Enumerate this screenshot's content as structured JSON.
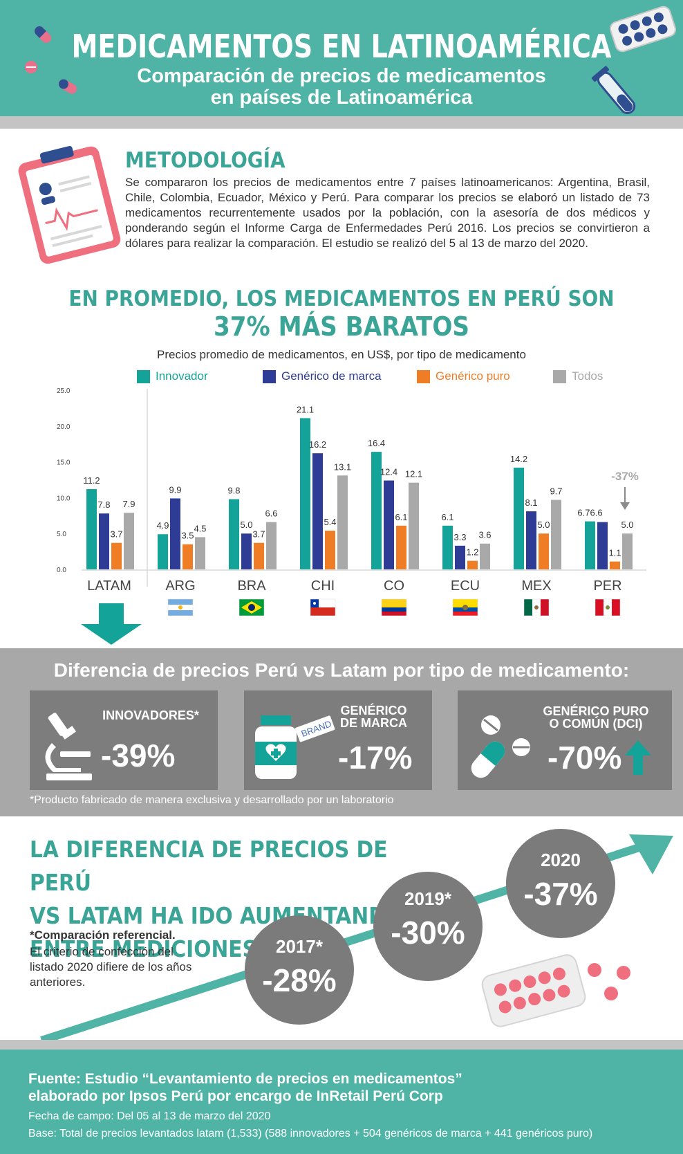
{
  "header": {
    "title": "MEDICAMENTOS EN LATINOAMÉRICA",
    "subtitle_line1": "Comparación de precios de medicamentos",
    "subtitle_line2": "en países de Latinoamérica"
  },
  "methodology": {
    "title": "METODOLOGÍA",
    "body": "Se compararon los precios de medicamentos entre 7 países latinoamericanos: Argentina, Brasil, Chile, Colombia, Ecuador, México y Perú. Para comparar los precios se elaboró un listado de 73 medicamentos recurrentemente usados por la población, con la asesoría de dos médicos y ponderando según el Informe Carga de Enfermedades Perú 2016. Los precios se convirtieron a dólares para realizar la comparación. El estudio se realizó del 5 al 13 de marzo del 2020."
  },
  "headline": {
    "line1": "EN PROMEDIO, LOS MEDICAMENTOS EN PERÚ SON",
    "line2": "37% MÁS BARATOS"
  },
  "chart_data": {
    "type": "bar",
    "title": "Precios promedio de medicamentos, en US$, por tipo de medicamento",
    "categories": [
      "LATAM",
      "ARG",
      "BRA",
      "CHI",
      "CO",
      "ECU",
      "MEX",
      "PER"
    ],
    "series": [
      {
        "name": "Innovador",
        "color": "#13a398",
        "values": [
          11.2,
          4.9,
          9.8,
          21.1,
          16.4,
          6.1,
          14.2,
          6.7
        ]
      },
      {
        "name": "Genérico de marca",
        "color": "#2e3c95",
        "values": [
          7.8,
          9.9,
          5.0,
          16.2,
          12.4,
          3.3,
          8.1,
          6.6
        ]
      },
      {
        "name": "Genérico puro",
        "color": "#ef7d26",
        "values": [
          3.7,
          3.5,
          3.7,
          5.4,
          6.1,
          1.2,
          5.0,
          1.1
        ]
      },
      {
        "name": "Todos",
        "color": "#a9a9a9",
        "values": [
          7.9,
          4.5,
          6.6,
          13.1,
          12.1,
          3.6,
          9.7,
          5.0
        ]
      }
    ],
    "value_labels": [
      [
        "11.2",
        "4.9",
        "9.8",
        "21.1",
        "16.4",
        "6.1",
        "14.2",
        "6.76.6"
      ],
      [
        "7.8",
        "9.9",
        "5.0",
        "16.2",
        "12.4",
        "3.3",
        "8.1",
        ""
      ],
      [
        "3.7",
        "3.5",
        "3.7",
        "5.4",
        "6.1",
        "1.2",
        "5.0",
        "1.1"
      ],
      [
        "7.9",
        "4.5",
        "6.6",
        "13.1",
        "12.1",
        "3.6",
        "9.7",
        "5.0"
      ]
    ],
    "yticks": [
      "0.0",
      "5.0",
      "10.0",
      "15.0",
      "20.0",
      "25.0"
    ],
    "ylim": [
      0,
      25
    ],
    "annotation": "-37%",
    "legend_placement": "top"
  },
  "flags": [
    "argentina",
    "brazil",
    "chile",
    "colombia",
    "ecuador",
    "mexico",
    "peru"
  ],
  "diff": {
    "title": "Diferencia de precios Perú vs Latam por tipo de medicamento:",
    "cards": [
      {
        "label1": "INNOVADORES*",
        "label2": "",
        "value": "-39%",
        "icon": "microscope-icon"
      },
      {
        "label1": "GENÉRICO",
        "label2": "DE MARCA",
        "value": "-17%",
        "icon": "medicine-bottle-icon",
        "tag": "BRAND"
      },
      {
        "label1": "GENÉRICO PURO",
        "label2": "O COMÚN (DCI)",
        "value": "-70%",
        "icon": "pills-icon"
      }
    ],
    "note": "*Producto fabricado de manera exclusiva y desarrollado por un laboratorio"
  },
  "trend": {
    "title_line1": "LA DIFERENCIA DE PRECIOS DE PERÚ",
    "title_line2": "VS LATAM HA IDO AUMENTANDO",
    "title_line3": "ENTRE MEDICIONES",
    "note_bold": "*Comparación referencial.",
    "note": "El criterio de confección del listado 2020 difiere de los años anteriores.",
    "points": [
      {
        "year": "2017*",
        "value": "-28%"
      },
      {
        "year": "2019*",
        "value": "-30%"
      },
      {
        "year": "2020",
        "value": "-37%"
      }
    ]
  },
  "footer": {
    "source_line1": "Fuente: Estudio “Levantamiento de precios en medicamentos”",
    "source_line2": "elaborado por Ipsos Perú por encargo de InRetail Perú Corp",
    "fecha": "Fecha de campo: Del 05 al 13 de marzo del 2020",
    "base": "Base: Total de precios levantados latam (1,533) (588 innovadores + 504 genéricos de marca + 441 genéricos puro)"
  },
  "colors": {
    "teal": "#4fb3a6",
    "teal_dark": "#3aa597",
    "grey_band": "#a8a8a8",
    "card_grey": "#7d7d7d",
    "pink": "#ef6f7e",
    "navy": "#2e3c95"
  }
}
